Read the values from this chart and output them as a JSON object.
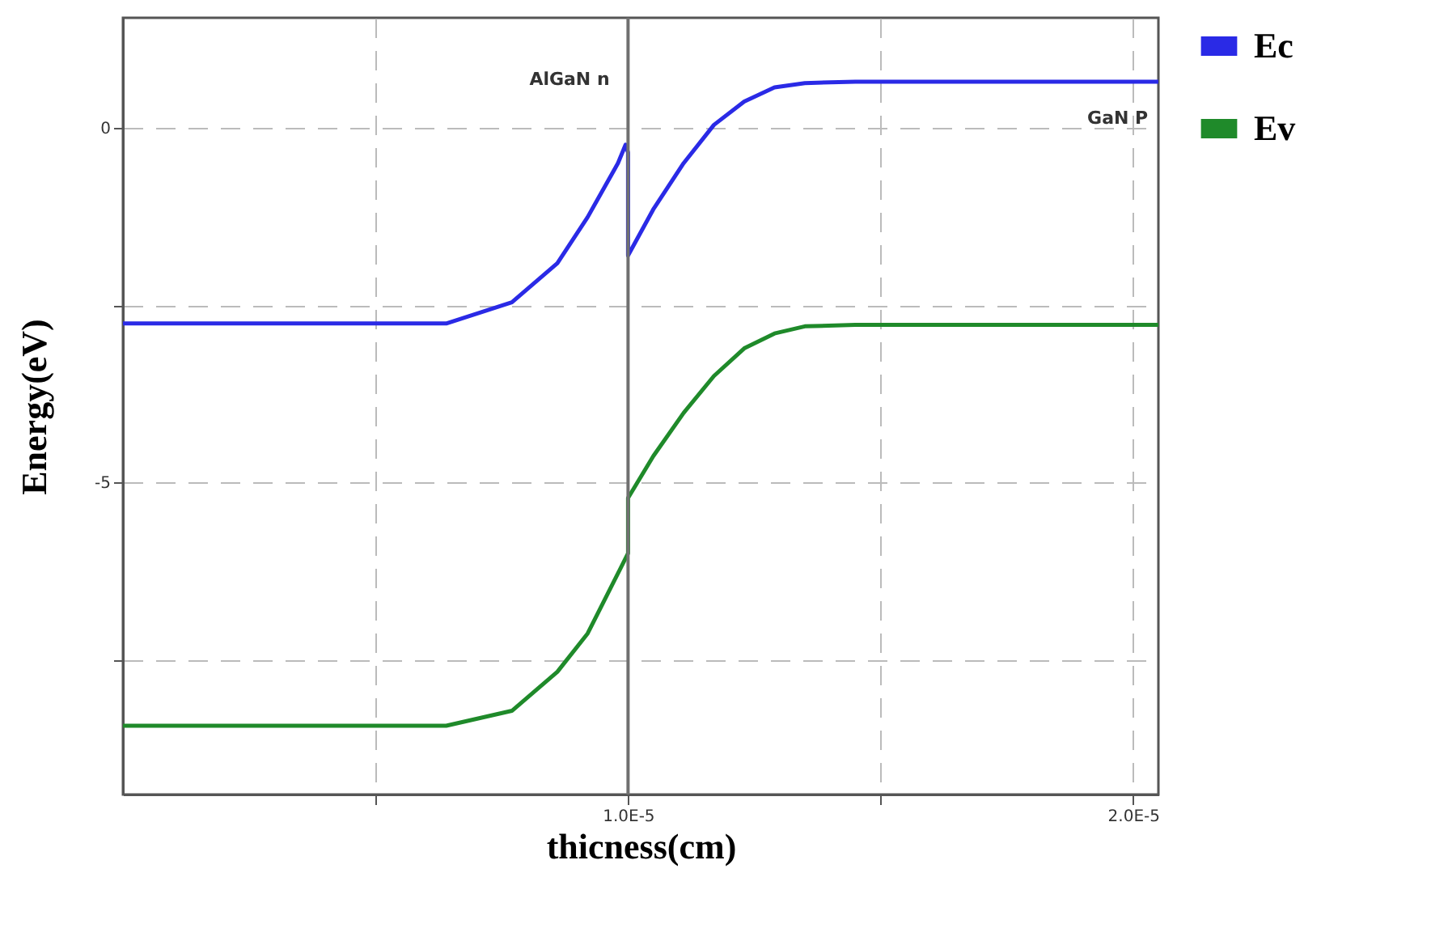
{
  "chart_data": {
    "type": "line",
    "xlabel": "thicness(cm)",
    "ylabel": "Energy(eV)",
    "xlim": [
      0,
      2.05e-05
    ],
    "ylim": [
      -9.4,
      1.55
    ],
    "xticks": [
      {
        "value": 5e-06,
        "label": null
      },
      {
        "value": 1e-05,
        "label": "1.0E-5"
      },
      {
        "value": 1.5e-05,
        "label": null
      },
      {
        "value": 2e-05,
        "label": "2.0E-5"
      }
    ],
    "yticks": [
      {
        "value": -7.5,
        "label": null
      },
      -5,
      {
        "value": -2.5,
        "label": null
      },
      0
    ],
    "grid": true,
    "legend": "top right",
    "marker": "none",
    "line_style": "solid",
    "series": [
      {
        "name": "Ec",
        "color": "#2a2ae6",
        "x": [
          0,
          6.4e-06,
          7.7e-06,
          8.6e-06,
          9.2e-06,
          9.8e-06,
          9.95e-06,
          1e-05,
          1e-05,
          1.05e-05,
          1.11e-05,
          1.17e-05,
          1.23e-05,
          1.29e-05,
          1.35e-05,
          1.45e-05,
          2.05e-05
        ],
        "values": [
          -2.76,
          -2.76,
          -2.46,
          -1.91,
          -1.26,
          -0.5,
          -0.24,
          -0.35,
          -1.8,
          -1.15,
          -0.5,
          0.04,
          0.37,
          0.57,
          0.63,
          0.65,
          0.65
        ]
      },
      {
        "name": "Ev",
        "color": "#1f8a2a",
        "x": [
          0,
          6.4e-06,
          7.7e-06,
          8.6e-06,
          9.2e-06,
          1e-05,
          1e-05,
          1.05e-05,
          1.11e-05,
          1.17e-05,
          1.23e-05,
          1.29e-05,
          1.35e-05,
          1.45e-05,
          2.05e-05
        ],
        "values": [
          -8.43,
          -8.43,
          -8.22,
          -7.67,
          -7.13,
          -6.0,
          -5.22,
          -4.63,
          -4.02,
          -3.5,
          -3.11,
          -2.9,
          -2.8,
          -2.78,
          -2.78
        ]
      }
    ],
    "ref_lines": [
      {
        "axis": "x",
        "value": 1e-05,
        "color": "#707070",
        "line_style": "solid"
      }
    ],
    "annotations": [
      "AlGaN n",
      "GaN P"
    ]
  }
}
